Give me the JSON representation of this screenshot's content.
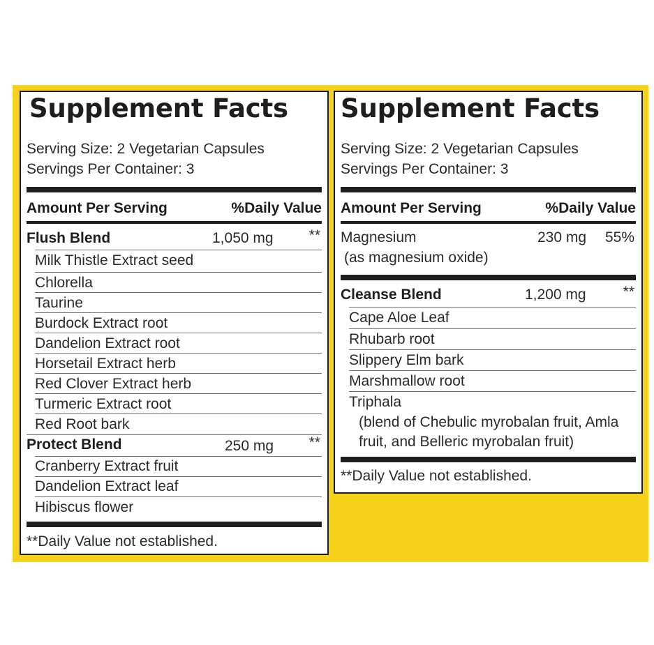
{
  "left_panel": {
    "title": "Supplement Facts",
    "serving_size": "Serving Size: 2 Vegetarian Capsules",
    "servings_per_container": "Servings Per Container: 3",
    "amount_header": "Amount Per Serving",
    "dv_header": "%Daily Value",
    "flush_blend": {
      "name": "Flush Blend",
      "amount": "1,050 mg",
      "dv": "**",
      "ingredients": [
        "Milk Thistle Extract seed",
        "Chlorella",
        "Taurine",
        "Burdock Extract root",
        "Dandelion Extract root",
        "Horsetail Extract herb",
        "Red Clover Extract herb",
        "Turmeric Extract root",
        "Red Root bark"
      ]
    },
    "protect_blend": {
      "name": "Protect Blend",
      "amount": "250 mg",
      "dv": "**",
      "ingredients": [
        "Cranberry Extract fruit",
        "Dandelion Extract leaf",
        "Hibiscus flower"
      ]
    },
    "footnote": "**Daily Value not established."
  },
  "right_panel": {
    "title": "Supplement Facts",
    "serving_size": "Serving Size: 2 Vegetarian Capsules",
    "servings_per_container": "Servings Per Container: 3",
    "amount_header": "Amount Per Serving",
    "dv_header": "%Daily Value",
    "magnesium": {
      "name": "Magnesium",
      "sub": "(as magnesium oxide)",
      "amount": "230 mg",
      "dv": "55%"
    },
    "cleanse_blend": {
      "name": "Cleanse Blend",
      "amount": "1,200 mg",
      "dv": "**",
      "ingredients": [
        "Cape Aloe Leaf",
        "Rhubarb root",
        "Slippery Elm bark",
        "Marshmallow root",
        "Triphala"
      ],
      "triphala_note_line1": "(blend of Chebulic myrobalan fruit, Amla",
      "triphala_note_line2": "fruit, and Belleric myrobalan fruit)"
    },
    "footnote": "**Daily Value not established."
  },
  "colors": {
    "background_band": "#f7d21a",
    "panel": "#ffffff",
    "ink": "#1e1e1e"
  }
}
